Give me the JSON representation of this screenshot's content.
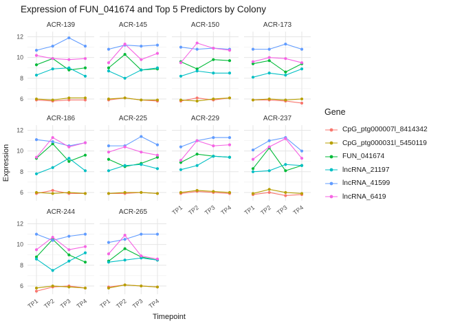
{
  "chart_data": {
    "type": "line",
    "title": "Expression of FUN_041674 and Top 5 Predictors by Colony",
    "xlabel": "Timepoint",
    "ylabel": "Expression",
    "legend_title": "Gene",
    "x_categories": [
      "TP1",
      "TP2",
      "TP3",
      "TP4"
    ],
    "y_ticks": [
      6,
      8,
      10,
      12
    ],
    "y_minor_ticks": [
      7,
      9,
      11
    ],
    "ylim": [
      5.2,
      12.5
    ],
    "grid": true,
    "legend_position": "right",
    "genes": [
      {
        "name": "CpG_ptg000007l_8414342",
        "color": "#F8766D"
      },
      {
        "name": "CpG_ptg000031l_5450119",
        "color": "#B79F00"
      },
      {
        "name": "FUN_041674",
        "color": "#00BA38"
      },
      {
        "name": "lncRNA_21197",
        "color": "#00BFC4"
      },
      {
        "name": "lncRNA_41599",
        "color": "#619CFF"
      },
      {
        "name": "lncRNA_6419",
        "color": "#F564E3"
      }
    ],
    "facets": [
      {
        "label": "ACR-139",
        "values": [
          [
            5.9,
            5.8,
            5.9,
            5.9
          ],
          [
            6.0,
            5.9,
            6.1,
            6.1
          ],
          [
            9.3,
            9.9,
            8.8,
            9.0
          ],
          [
            8.3,
            8.9,
            9.0,
            8.2
          ],
          [
            10.7,
            11.1,
            11.9,
            11.1
          ],
          [
            10.2,
            9.9,
            9.8,
            9.9
          ]
        ]
      },
      {
        "label": "ACR-145",
        "values": [
          [
            5.9,
            6.1,
            5.9,
            5.8
          ],
          [
            6.0,
            6.1,
            5.9,
            5.9
          ],
          [
            9.0,
            10.3,
            8.8,
            8.9
          ],
          [
            8.7,
            8.0,
            8.8,
            9.0
          ],
          [
            10.8,
            11.2,
            11.1,
            11.2
          ],
          [
            9.5,
            11.3,
            9.8,
            10.4
          ]
        ]
      },
      {
        "label": "ACR-150",
        "values": [
          [
            5.8,
            6.1,
            5.9,
            6.1
          ],
          [
            5.9,
            5.8,
            6.0,
            6.1
          ],
          [
            9.6,
            8.9,
            9.8,
            9.7
          ],
          [
            8.2,
            8.7,
            8.5,
            8.5
          ],
          [
            11.0,
            10.8,
            10.9,
            10.8
          ],
          [
            9.5,
            11.4,
            10.9,
            10.7
          ]
        ]
      },
      {
        "label": "ACR-173",
        "values": [
          [
            5.9,
            5.9,
            5.8,
            5.6
          ],
          [
            5.9,
            6.0,
            5.9,
            6.0
          ],
          [
            9.4,
            9.7,
            8.6,
            9.4
          ],
          [
            8.1,
            8.5,
            8.3,
            8.9
          ],
          [
            10.8,
            10.8,
            11.3,
            10.8
          ],
          [
            9.6,
            10.0,
            9.9,
            9.5
          ]
        ]
      },
      {
        "label": "ACR-186",
        "values": [
          [
            5.9,
            6.2,
            5.9,
            5.9
          ],
          [
            6.0,
            5.9,
            6.0,
            5.9
          ],
          [
            9.3,
            10.7,
            9.0,
            9.6
          ],
          [
            7.8,
            8.4,
            9.3,
            8.1
          ],
          [
            11.1,
            10.9,
            10.5,
            10.8
          ],
          [
            9.4,
            11.3,
            10.4,
            10.8
          ]
        ]
      },
      {
        "label": "ACR-225",
        "values": [
          [
            5.9,
            5.9,
            6.0,
            5.9
          ],
          [
            5.9,
            6.0,
            6.0,
            5.9
          ],
          [
            9.2,
            8.5,
            8.8,
            9.4
          ],
          [
            8.1,
            8.6,
            8.7,
            8.3
          ],
          [
            10.5,
            10.5,
            11.4,
            10.6
          ],
          [
            9.9,
            10.4,
            9.9,
            9.6
          ]
        ]
      },
      {
        "label": "ACR-229",
        "values": [
          [
            5.9,
            6.1,
            6.0,
            5.9
          ],
          [
            6.0,
            6.2,
            6.1,
            6.0
          ],
          [
            8.9,
            9.7,
            9.5,
            9.4
          ],
          [
            8.2,
            8.6,
            9.5,
            9.4
          ],
          [
            10.4,
            11.0,
            11.3,
            11.3
          ],
          [
            9.1,
            11.0,
            10.5,
            10.6
          ]
        ]
      },
      {
        "label": "ACR-237",
        "values": [
          [
            5.8,
            6.0,
            5.7,
            5.8
          ],
          [
            5.9,
            6.3,
            6.0,
            5.9
          ],
          [
            8.3,
            10.3,
            8.1,
            8.6
          ],
          [
            8.0,
            8.1,
            8.7,
            8.6
          ],
          [
            10.1,
            11.0,
            11.3,
            10.0
          ],
          [
            9.2,
            10.4,
            11.2,
            9.3
          ]
        ]
      },
      {
        "label": "ACR-244",
        "values": [
          [
            5.5,
            5.9,
            6.0,
            5.8
          ],
          [
            5.8,
            6.0,
            5.9,
            5.8
          ],
          [
            8.8,
            10.5,
            9.0,
            8.3
          ],
          [
            8.6,
            7.5,
            8.4,
            9.2
          ],
          [
            11.0,
            10.4,
            10.8,
            11.0
          ],
          [
            9.5,
            10.7,
            9.5,
            9.8
          ]
        ]
      },
      {
        "label": "ACR-265",
        "values": [
          [
            5.9,
            6.1,
            6.0,
            5.9
          ],
          [
            5.8,
            6.1,
            6.0,
            5.9
          ],
          [
            8.4,
            9.6,
            8.8,
            8.5
          ],
          [
            8.3,
            8.5,
            8.7,
            8.5
          ],
          [
            10.2,
            10.5,
            11.0,
            11.0
          ],
          [
            9.1,
            10.9,
            8.9,
            8.6
          ]
        ]
      }
    ]
  }
}
